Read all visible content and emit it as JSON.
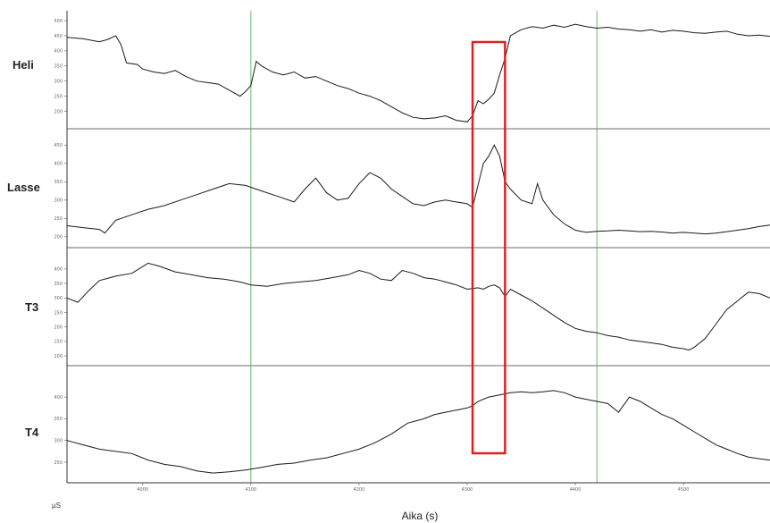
{
  "chart_data": {
    "type": "line",
    "xlabel": "Aika (s)",
    "ylabel": "µS",
    "x_ticks": [
      "4000",
      "4100",
      "4200",
      "4300",
      "4400",
      "4500"
    ],
    "x_tick_values": [
      4000,
      4100,
      4200,
      4300,
      4400,
      4500
    ],
    "xlim": [
      3930,
      4580
    ],
    "vertical_markers": [
      4100,
      4420
    ],
    "highlight": {
      "x_range": [
        4305,
        4335
      ],
      "color": "#e02020"
    },
    "colors": {
      "line": "#1a1a1a",
      "marker": "#7ec87e",
      "separator": "#888888"
    },
    "panels": [
      {
        "name": "Heli",
        "y_ticks": [
          "200",
          "250",
          "300",
          "350",
          "400",
          "450",
          "500"
        ],
        "ylim": [
          160,
          515
        ],
        "x": [
          3930,
          3945,
          3960,
          3968,
          3975,
          3980,
          3985,
          3995,
          4000,
          4010,
          4020,
          4030,
          4040,
          4050,
          4060,
          4070,
          4080,
          4090,
          4095,
          4100,
          4105,
          4110,
          4120,
          4130,
          4140,
          4150,
          4160,
          4170,
          4180,
          4190,
          4200,
          4210,
          4220,
          4230,
          4240,
          4250,
          4260,
          4270,
          4280,
          4290,
          4300,
          4305,
          4310,
          4315,
          4320,
          4325,
          4330,
          4335,
          4340,
          4350,
          4360,
          4370,
          4380,
          4390,
          4400,
          4410,
          4420,
          4430,
          4440,
          4450,
          4460,
          4470,
          4480,
          4490,
          4500,
          4510,
          4520,
          4530,
          4540,
          4550,
          4560,
          4570,
          4580
        ],
        "y": [
          445,
          440,
          430,
          438,
          450,
          420,
          360,
          355,
          340,
          330,
          325,
          335,
          315,
          300,
          295,
          290,
          270,
          250,
          265,
          285,
          365,
          350,
          330,
          320,
          330,
          310,
          315,
          300,
          285,
          275,
          260,
          250,
          235,
          215,
          195,
          180,
          175,
          178,
          185,
          170,
          165,
          185,
          235,
          225,
          240,
          260,
          320,
          375,
          450,
          470,
          480,
          475,
          485,
          478,
          488,
          480,
          475,
          478,
          472,
          470,
          465,
          470,
          462,
          468,
          465,
          460,
          458,
          462,
          465,
          455,
          450,
          452,
          448
        ]
      },
      {
        "name": "Lasse",
        "y_ticks": [
          "200",
          "250",
          "300",
          "350",
          "400",
          "450"
        ],
        "ylim": [
          185,
          480
        ],
        "x": [
          3930,
          3945,
          3960,
          3965,
          3975,
          3990,
          4005,
          4020,
          4035,
          4050,
          4065,
          4080,
          4095,
          4110,
          4125,
          4140,
          4150,
          4160,
          4170,
          4180,
          4190,
          4200,
          4210,
          4220,
          4230,
          4240,
          4250,
          4260,
          4270,
          4280,
          4290,
          4300,
          4305,
          4310,
          4315,
          4320,
          4325,
          4330,
          4335,
          4340,
          4350,
          4360,
          4365,
          4370,
          4380,
          4390,
          4400,
          4410,
          4420,
          4430,
          4440,
          4450,
          4460,
          4470,
          4480,
          4490,
          4500,
          4510,
          4520,
          4530,
          4540,
          4550,
          4560,
          4570,
          4580
        ],
        "y": [
          230,
          225,
          220,
          210,
          245,
          260,
          275,
          285,
          300,
          315,
          330,
          345,
          340,
          325,
          310,
          295,
          330,
          360,
          320,
          300,
          305,
          345,
          375,
          360,
          330,
          310,
          290,
          285,
          295,
          300,
          295,
          290,
          280,
          340,
          400,
          420,
          450,
          420,
          350,
          330,
          300,
          290,
          345,
          300,
          260,
          235,
          218,
          212,
          215,
          216,
          218,
          216,
          214,
          215,
          213,
          210,
          212,
          210,
          208,
          210,
          214,
          218,
          222,
          228,
          232
        ]
      },
      {
        "name": "T3",
        "y_ticks": [
          "100",
          "150",
          "200",
          "250",
          "300",
          "350",
          "400"
        ],
        "ylim": [
          85,
          455
        ],
        "x": [
          3930,
          3940,
          3950,
          3960,
          3975,
          3990,
          4005,
          4015,
          4030,
          4045,
          4060,
          4075,
          4090,
          4100,
          4115,
          4130,
          4145,
          4160,
          4175,
          4190,
          4200,
          4210,
          4220,
          4230,
          4240,
          4250,
          4260,
          4270,
          4280,
          4290,
          4300,
          4310,
          4315,
          4320,
          4325,
          4330,
          4335,
          4340,
          4350,
          4360,
          4370,
          4380,
          4390,
          4400,
          4410,
          4420,
          4430,
          4440,
          4450,
          4460,
          4470,
          4480,
          4490,
          4500,
          4505,
          4510,
          4520,
          4530,
          4540,
          4550,
          4560,
          4570,
          4580
        ],
        "y": [
          300,
          285,
          325,
          360,
          375,
          385,
          420,
          410,
          390,
          380,
          370,
          365,
          355,
          345,
          340,
          350,
          355,
          360,
          370,
          380,
          395,
          385,
          365,
          360,
          395,
          385,
          370,
          365,
          355,
          345,
          330,
          335,
          330,
          340,
          345,
          335,
          305,
          330,
          310,
          290,
          265,
          240,
          215,
          195,
          185,
          180,
          170,
          165,
          155,
          150,
          145,
          140,
          130,
          125,
          120,
          130,
          160,
          210,
          260,
          290,
          320,
          315,
          300
        ]
      },
      {
        "name": "T4",
        "y_ticks": [
          "250",
          "300",
          "350",
          "400"
        ],
        "ylim": [
          215,
          460
        ],
        "x": [
          3930,
          3945,
          3960,
          3975,
          3990,
          4005,
          4020,
          4035,
          4050,
          4065,
          4080,
          4095,
          4110,
          4125,
          4140,
          4155,
          4170,
          4185,
          4200,
          4215,
          4230,
          4245,
          4260,
          4270,
          4280,
          4290,
          4300,
          4305,
          4310,
          4320,
          4330,
          4340,
          4350,
          4360,
          4370,
          4380,
          4390,
          4400,
          4410,
          4420,
          4430,
          4440,
          4450,
          4460,
          4470,
          4480,
          4490,
          4500,
          4510,
          4520,
          4530,
          4540,
          4550,
          4560,
          4570,
          4580
        ],
        "y": [
          300,
          290,
          280,
          275,
          270,
          255,
          245,
          240,
          230,
          225,
          228,
          232,
          238,
          245,
          248,
          255,
          260,
          270,
          280,
          295,
          315,
          340,
          350,
          360,
          365,
          370,
          375,
          380,
          390,
          400,
          405,
          410,
          412,
          410,
          412,
          415,
          410,
          400,
          395,
          390,
          385,
          365,
          400,
          390,
          375,
          360,
          350,
          335,
          320,
          305,
          290,
          280,
          270,
          262,
          258,
          255
        ]
      }
    ]
  }
}
